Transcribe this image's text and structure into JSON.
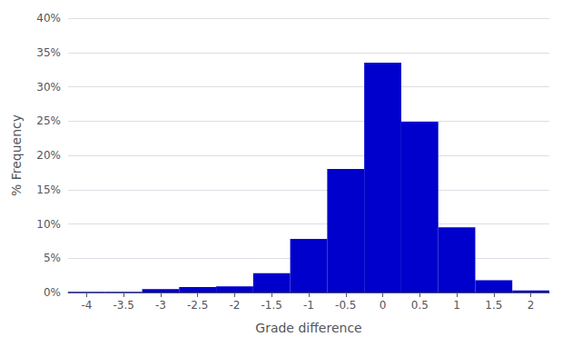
{
  "chart_data": {
    "type": "bar",
    "xlabel": "Grade difference",
    "ylabel": "% Frequency",
    "x": [
      -4,
      -3.5,
      -3,
      -2.5,
      -2,
      -1.5,
      -1,
      -0.5,
      0,
      0.5,
      1,
      1.5,
      2
    ],
    "values": [
      0.001,
      0.001,
      0.005,
      0.008,
      0.009,
      0.028,
      0.078,
      0.18,
      0.335,
      0.249,
      0.095,
      0.018,
      0.003
    ],
    "color": "#0000CC",
    "xlim": [
      -4.25,
      2.25
    ],
    "ylim": [
      0,
      0.4
    ],
    "xticks": [
      -4,
      -3.5,
      -3,
      -2.5,
      -2,
      -1.5,
      -1,
      -0.5,
      0,
      0.5,
      1,
      1.5,
      2
    ],
    "yticks": [
      {
        "value": 0,
        "label": "0%"
      },
      {
        "value": 0.05,
        "label": "5%"
      },
      {
        "value": 0.1,
        "label": "10%"
      },
      {
        "value": 0.15,
        "label": "15%"
      },
      {
        "value": 0.2,
        "label": "20%"
      },
      {
        "value": 0.25,
        "label": "25%"
      },
      {
        "value": 0.3,
        "label": "30%"
      },
      {
        "value": 0.35,
        "label": "35%"
      },
      {
        "value": 0.4,
        "label": "40%"
      }
    ],
    "grid": true
  }
}
